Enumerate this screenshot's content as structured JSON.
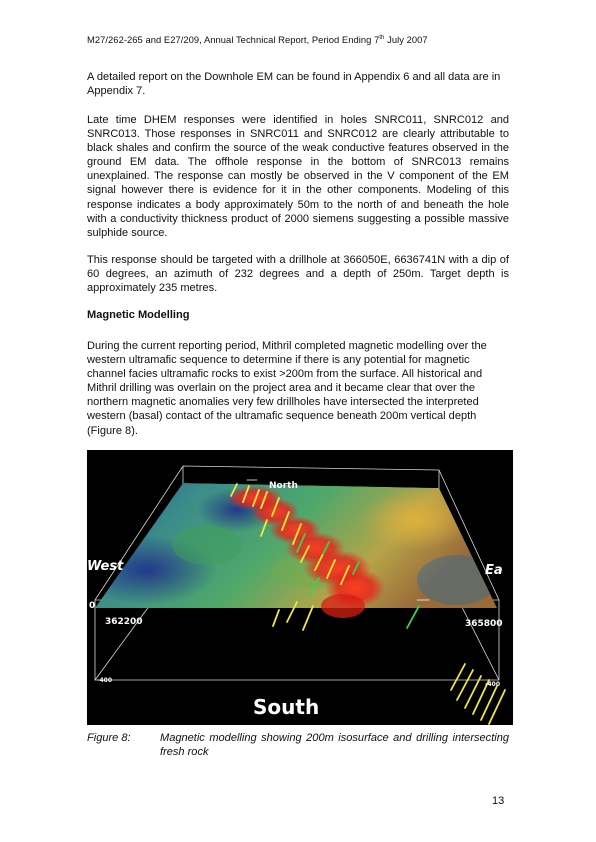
{
  "header": {
    "text_before_sup": "M27/262-265 and E27/209, Annual Technical Report, Period Ending 7",
    "sup": "th",
    "text_after_sup": " July 2007"
  },
  "paragraphs": [
    "A detailed report on the Downhole EM can be found in Appendix 6 and all data are in Appendix 7.",
    "Late time DHEM responses were identified in holes SNRC011, SNRC012 and SNRC013.  Those responses in SNRC011 and SNRC012 are clearly attributable to black shales and confirm the source of the weak conductive features observed in the ground EM data.  The offhole response in the bottom of SNRC013 remains unexplained.  The response can mostly be observed in the V component of the EM signal however there is evidence for it in the other components.  Modeling of this response indicates a body approximately 50m to the north of and beneath the hole with a conductivity thickness product of 2000 siemens suggesting a possible massive sulphide source.",
    "This response should be targeted with a drillhole at 366050E, 6636741N with a dip of 60 degrees, an azimuth of 232 degrees and a depth of 250m.  Target depth is approximately 235 metres."
  ],
  "section_heading": "Magnetic Modelling",
  "section_paragraph": "During the current reporting period, Mithril completed magnetic modelling over the western ultramafic sequence to determine if there is any potential for magnetic channel facies ultramafic rocks to exist >200m from the surface.  All historical and Mithril drilling was overlain on the project area and it became clear that over the northern magnetic anomalies very few drillholes have intersected the interpreted western (basal) contact of the ultramafic sequence beneath 200m vertical depth (Figure 8).",
  "figure": {
    "labels": {
      "north": "North",
      "south": "South",
      "west": "West",
      "east": "Ea",
      "left_easting": "362200",
      "right_easting": "365800",
      "left_depth": "-400",
      "right_depth": "-400",
      "side_left": "0"
    },
    "colors": {
      "background": "#000000",
      "box_line": "#d8d8d8",
      "anomaly": "#e8231c",
      "low": "#2a3e9c",
      "mid": "#3d9a7a",
      "high": "#d7a033",
      "drill_yellow": "#f2e63a",
      "drill_green": "#3cd44a"
    }
  },
  "caption": {
    "label": "Figure 8:",
    "text": "Magnetic modelling showing 200m isosurface and drilling intersecting fresh rock"
  },
  "page_number": "13"
}
